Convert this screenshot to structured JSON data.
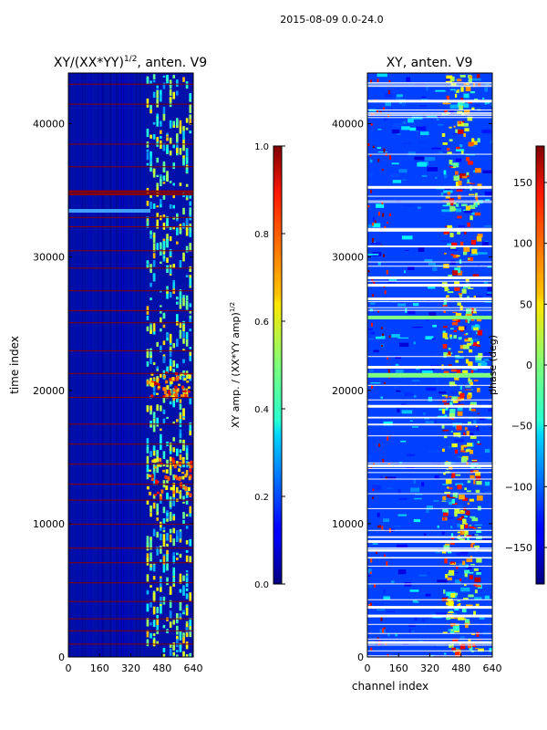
{
  "suptitle": "2015-08-09 0.0-24.0",
  "chart_data": [
    {
      "type": "heatmap",
      "title_main": "XY/(XX*YY)",
      "title_sup": "1/2",
      "title_rest": ", anten. V9",
      "xlabel": "",
      "ylabel": "time index",
      "xlim": [
        0,
        640
      ],
      "ylim": [
        0,
        43800
      ],
      "xticks": [
        "0",
        "160",
        "320",
        "480",
        "640"
      ],
      "yticks": [
        "0",
        "10000",
        "20000",
        "30000",
        "40000"
      ],
      "colorbar": {
        "label_main": "XY amp. / (XX*YY amp)",
        "label_sup": "1/2",
        "range": [
          0.0,
          1.0
        ],
        "ticks": [
          "0.0",
          "0.2",
          "0.4",
          "0.6",
          "0.8",
          "1.0"
        ],
        "colormap": "jet"
      }
    },
    {
      "type": "heatmap",
      "title_main": "XY, anten. V9",
      "xlabel": "channel index",
      "ylabel": "",
      "xlim": [
        0,
        640
      ],
      "ylim": [
        0,
        43800
      ],
      "xticks": [
        "0",
        "160",
        "320",
        "480",
        "640"
      ],
      "yticks": [
        "0",
        "10000",
        "20000",
        "30000",
        "40000"
      ],
      "colorbar": {
        "label_main": "phase (deg)",
        "range": [
          -180,
          180
        ],
        "ticks": [
          "−150",
          "−100",
          "−50",
          "0",
          "50",
          "100",
          "150"
        ],
        "colormap": "jet"
      }
    }
  ]
}
